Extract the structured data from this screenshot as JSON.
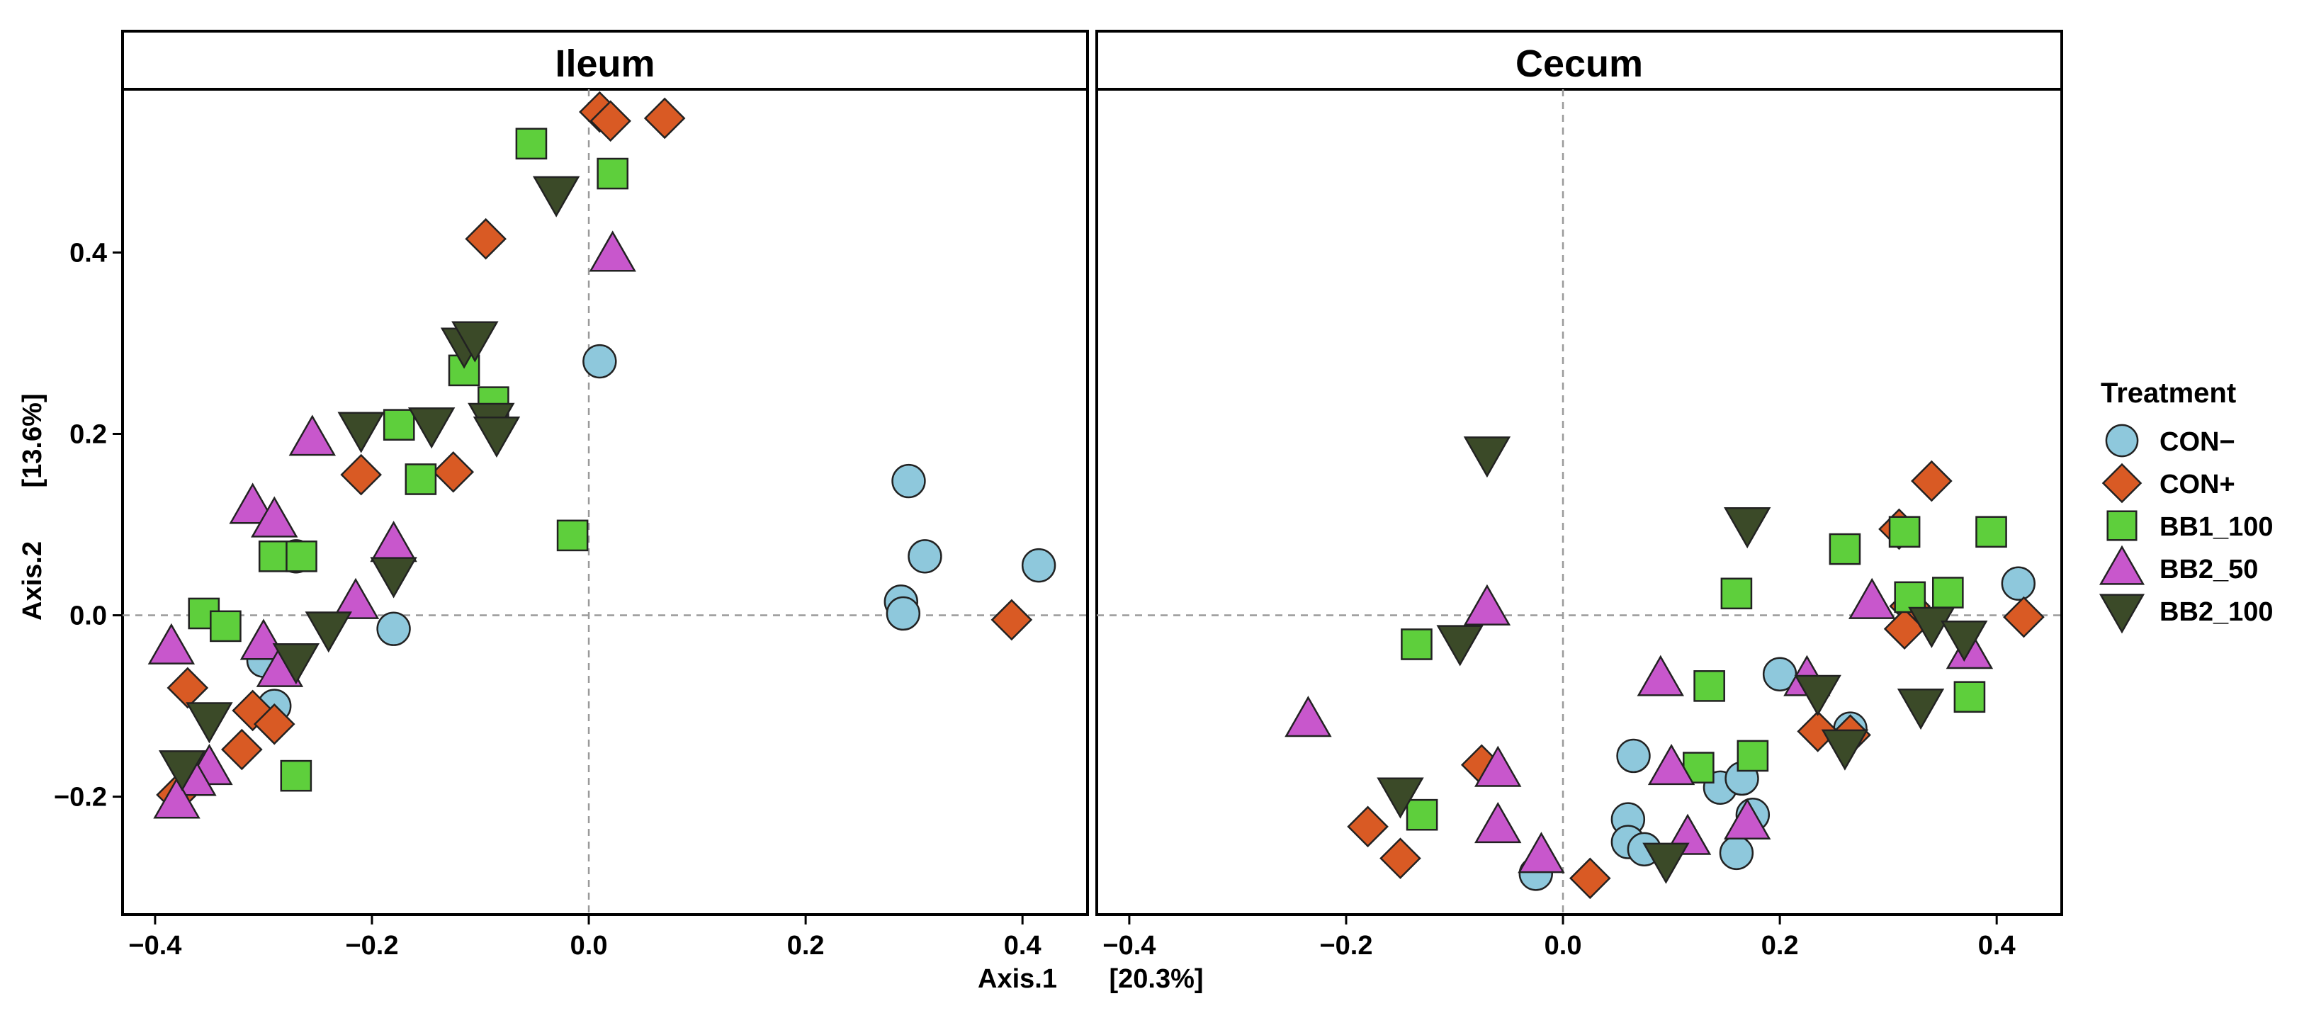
{
  "chart_data": {
    "type": "scatter",
    "xlabel": "Axis.1",
    "xlabel_pct": "[20.3%]",
    "ylabel": "Axis.2",
    "ylabel_pct": "[13.6%]",
    "legend": {
      "title": "Treatment",
      "position": "right"
    },
    "colors": {
      "CON−": "#8ec8dc",
      "CON+": "#d95a24",
      "BB1_100": "#5ecf3c",
      "BB2_50": "#c857cc",
      "BB2_100": "#3b4a28"
    },
    "shapes": {
      "CON−": "circle",
      "CON+": "diamond",
      "BB1_100": "square",
      "BB2_50": "triangle-up",
      "BB2_100": "triangle-down"
    },
    "groups": [
      "CON−",
      "CON+",
      "BB1_100",
      "BB2_50",
      "BB2_100"
    ],
    "ylim": [
      -0.33,
      0.58
    ],
    "yticks": [
      -0.2,
      0.0,
      0.2,
      0.4
    ],
    "ytick_labels": [
      "−0.2",
      "0.0",
      "0.2",
      "0.4"
    ],
    "panels": [
      {
        "title": "Ileum",
        "xlim": [
          -0.43,
          0.46
        ],
        "xticks": [
          -0.4,
          -0.2,
          0.0,
          0.2,
          0.4
        ],
        "xtick_labels": [
          "−0.4",
          "−0.2",
          "0.0",
          "0.2",
          "0.4"
        ],
        "series": [
          {
            "name": "CON−",
            "points": [
              [
                0.01,
                0.28
              ],
              [
                -0.18,
                -0.015
              ],
              [
                0.295,
                0.148
              ],
              [
                0.31,
                0.065
              ],
              [
                0.415,
                0.055
              ],
              [
                0.288,
                0.015
              ],
              [
                0.29,
                0.002
              ],
              [
                -0.3,
                -0.05
              ],
              [
                -0.29,
                -0.1
              ],
              [
                -0.27,
                0.065
              ]
            ]
          },
          {
            "name": "CON+",
            "points": [
              [
                0.01,
                0.555
              ],
              [
                0.02,
                0.545
              ],
              [
                0.07,
                0.548
              ],
              [
                -0.095,
                0.415
              ],
              [
                -0.21,
                0.155
              ],
              [
                -0.125,
                0.158
              ],
              [
                -0.37,
                -0.08
              ],
              [
                -0.31,
                -0.105
              ],
              [
                -0.29,
                -0.12
              ],
              [
                -0.32,
                -0.148
              ],
              [
                -0.38,
                -0.198
              ],
              [
                0.39,
                -0.005
              ]
            ]
          },
          {
            "name": "BB1_100",
            "points": [
              [
                -0.053,
                0.52
              ],
              [
                0.022,
                0.487
              ],
              [
                -0.115,
                0.27
              ],
              [
                -0.088,
                0.235
              ],
              [
                -0.175,
                0.21
              ],
              [
                -0.155,
                0.15
              ],
              [
                -0.015,
                0.088
              ],
              [
                -0.29,
                0.065
              ],
              [
                -0.265,
                0.065
              ],
              [
                -0.355,
                0.002
              ],
              [
                -0.335,
                -0.012
              ],
              [
                -0.27,
                -0.177
              ]
            ]
          },
          {
            "name": "BB2_50",
            "points": [
              [
                0.022,
                0.398
              ],
              [
                -0.255,
                0.195
              ],
              [
                -0.31,
                0.12
              ],
              [
                -0.29,
                0.105
              ],
              [
                -0.18,
                0.078
              ],
              [
                -0.215,
                0.015
              ],
              [
                -0.385,
                -0.035
              ],
              [
                -0.3,
                -0.03
              ],
              [
                -0.285,
                -0.06
              ],
              [
                -0.35,
                -0.168
              ],
              [
                -0.365,
                -0.18
              ],
              [
                -0.38,
                -0.205
              ]
            ]
          },
          {
            "name": "BB2_100",
            "points": [
              [
                -0.03,
                0.465
              ],
              [
                -0.115,
                0.298
              ],
              [
                -0.105,
                0.305
              ],
              [
                -0.21,
                0.205
              ],
              [
                -0.145,
                0.21
              ],
              [
                -0.09,
                0.215
              ],
              [
                -0.085,
                0.2
              ],
              [
                -0.18,
                0.045
              ],
              [
                -0.24,
                -0.015
              ],
              [
                -0.27,
                -0.05
              ],
              [
                -0.35,
                -0.115
              ],
              [
                -0.375,
                -0.168
              ]
            ]
          }
        ]
      },
      {
        "title": "Cecum",
        "xlim": [
          -0.43,
          0.46
        ],
        "xticks": [
          -0.4,
          -0.2,
          0.0,
          0.2,
          0.4
        ],
        "xtick_labels": [
          "−0.4",
          "−0.2",
          "0.0",
          "0.2",
          "0.4"
        ],
        "series": [
          {
            "name": "CON−",
            "points": [
              [
                0.42,
                0.035
              ],
              [
                0.2,
                -0.065
              ],
              [
                0.265,
                -0.125
              ],
              [
                0.065,
                -0.155
              ],
              [
                0.145,
                -0.19
              ],
              [
                0.165,
                -0.18
              ],
              [
                0.175,
                -0.22
              ],
              [
                0.06,
                -0.225
              ],
              [
                0.06,
                -0.25
              ],
              [
                0.075,
                -0.258
              ],
              [
                0.16,
                -0.262
              ],
              [
                -0.025,
                -0.285
              ]
            ]
          },
          {
            "name": "CON+",
            "points": [
              [
                0.34,
                0.148
              ],
              [
                0.31,
                0.095
              ],
              [
                0.32,
                0.01
              ],
              [
                0.315,
                -0.015
              ],
              [
                0.425,
                -0.002
              ],
              [
                0.235,
                -0.128
              ],
              [
                0.265,
                -0.132
              ],
              [
                -0.075,
                -0.165
              ],
              [
                -0.18,
                -0.233
              ],
              [
                -0.15,
                -0.268
              ],
              [
                0.025,
                -0.29
              ]
            ]
          },
          {
            "name": "BB1_100",
            "points": [
              [
                0.395,
                0.092
              ],
              [
                0.315,
                0.092
              ],
              [
                0.26,
                0.073
              ],
              [
                0.16,
                0.024
              ],
              [
                0.355,
                0.025
              ],
              [
                0.32,
                0.02
              ],
              [
                -0.135,
                -0.032
              ],
              [
                0.135,
                -0.078
              ],
              [
                0.375,
                -0.09
              ],
              [
                0.175,
                -0.155
              ],
              [
                0.125,
                -0.168
              ],
              [
                -0.13,
                -0.22
              ]
            ]
          },
          {
            "name": "BB2_50",
            "points": [
              [
                -0.07,
                0.008
              ],
              [
                0.285,
                0.015
              ],
              [
                0.09,
                -0.07
              ],
              [
                0.225,
                -0.07
              ],
              [
                0.375,
                -0.04
              ],
              [
                -0.235,
                -0.115
              ],
              [
                0.1,
                -0.168
              ],
              [
                -0.06,
                -0.17
              ],
              [
                0.17,
                -0.228
              ],
              [
                -0.06,
                -0.232
              ],
              [
                0.115,
                -0.245
              ],
              [
                -0.02,
                -0.265
              ]
            ]
          },
          {
            "name": "BB2_100",
            "points": [
              [
                -0.07,
                0.178
              ],
              [
                0.17,
                0.1
              ],
              [
                -0.095,
                -0.03
              ],
              [
                0.235,
                -0.085
              ],
              [
                0.33,
                -0.1
              ],
              [
                0.26,
                -0.145
              ],
              [
                -0.15,
                -0.198
              ],
              [
                0.095,
                -0.27
              ],
              [
                0.34,
                -0.01
              ],
              [
                0.37,
                -0.025
              ]
            ]
          }
        ]
      }
    ]
  }
}
